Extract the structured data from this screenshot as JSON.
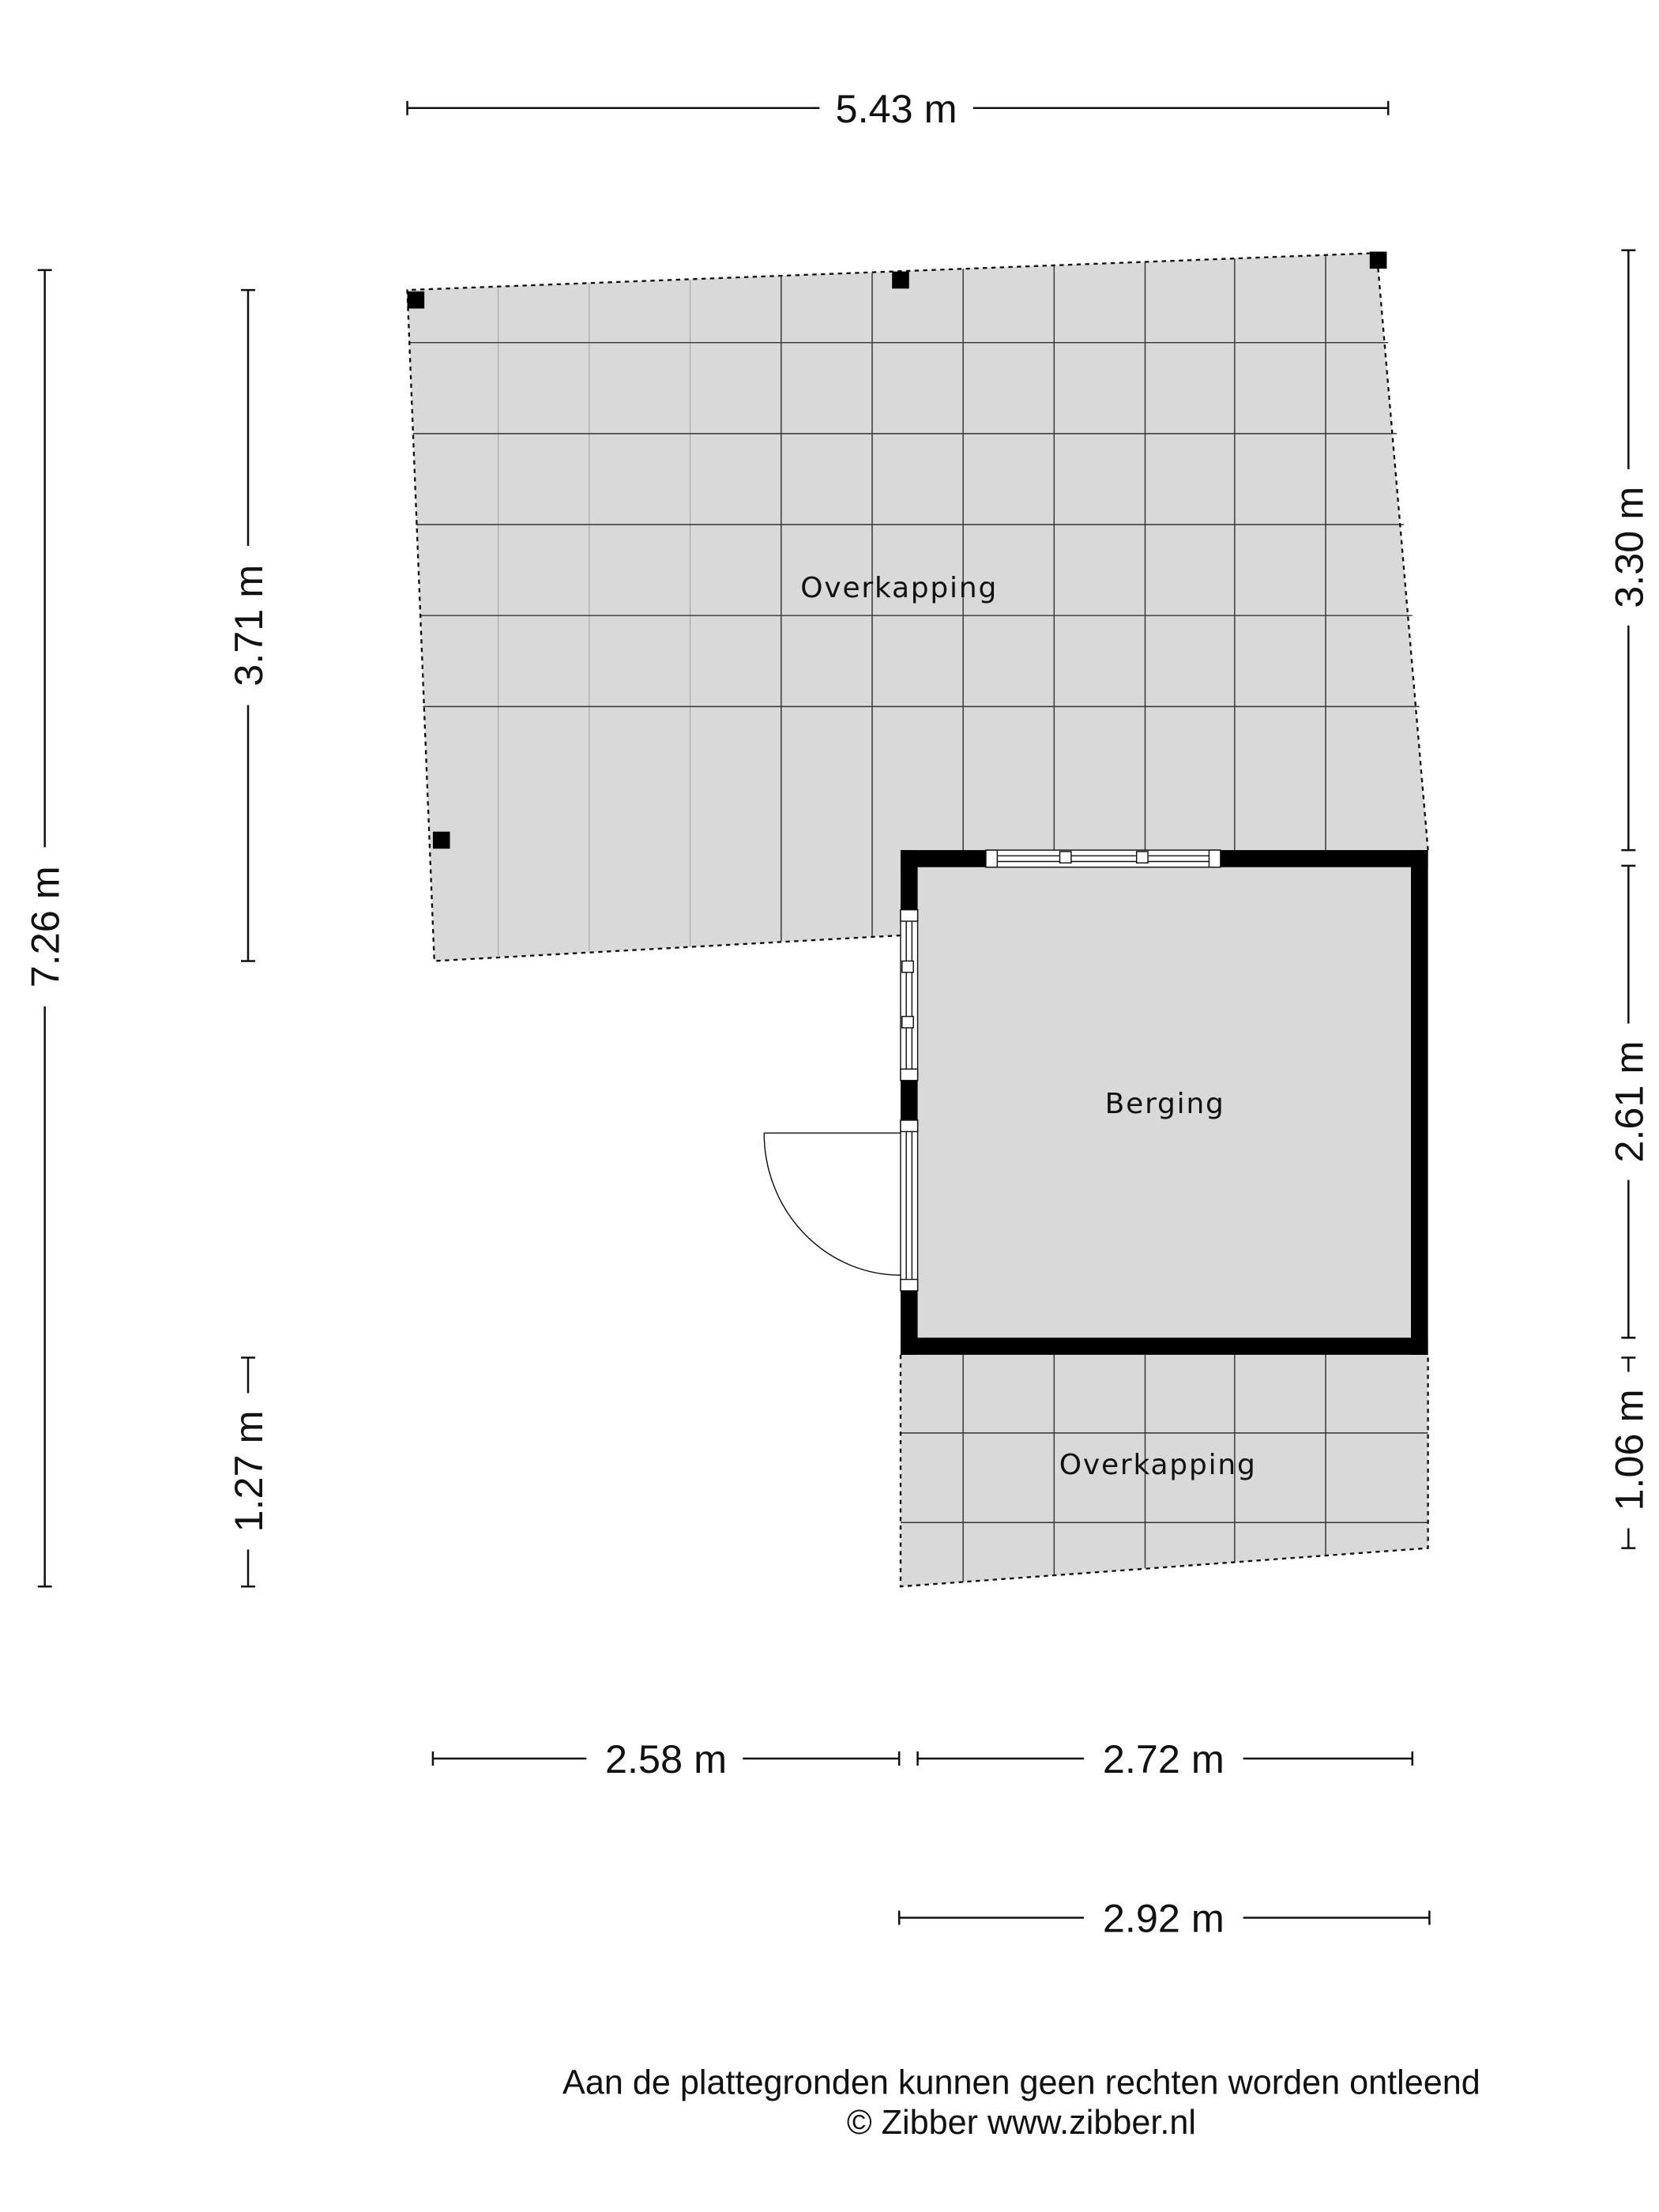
{
  "rooms": {
    "overkapping_top": "Overkapping",
    "berging": "Berging",
    "overkapping_bottom": "Overkapping"
  },
  "dimensions": {
    "top_width": "5.43 m",
    "left_total": "7.26 m",
    "left_upper": "3.71 m",
    "left_lower": "1.27 m",
    "right_upper": "3.30 m",
    "right_middle": "2.61 m",
    "right_lower": "1.06 m",
    "bottom_left": "2.58 m",
    "bottom_right": "2.72 m",
    "bottom_total": "2.92 m"
  },
  "footer": {
    "disclaimer": "Aan de plattegronden kunnen geen rechten worden ontleend",
    "copyright": "© Zibber www.zibber.nl"
  },
  "colors": {
    "floor": "#d9d9d9",
    "wall": "#000000"
  }
}
